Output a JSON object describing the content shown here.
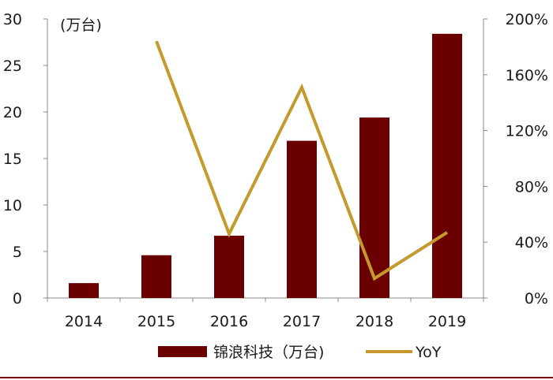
{
  "chart_data": {
    "type": "bar",
    "unit_label": "(万台)",
    "categories": [
      "2014",
      "2015",
      "2016",
      "2017",
      "2018",
      "2019"
    ],
    "y_left": {
      "ylim": [
        0,
        30
      ],
      "ticks": [
        "0",
        "5",
        "10",
        "15",
        "20",
        "25",
        "30"
      ]
    },
    "y_right": {
      "ylim": [
        0,
        200
      ],
      "ticks": [
        "0%",
        "40%",
        "80%",
        "120%",
        "160%",
        "200%"
      ]
    },
    "series": [
      {
        "name": "锦浪科技（万台)",
        "type": "bar",
        "axis": "left",
        "values": [
          1.6,
          4.6,
          6.7,
          16.9,
          19.4,
          28.4
        ],
        "color": "#6b0000"
      },
      {
        "name": "YoY",
        "type": "line",
        "axis": "right",
        "values": [
          null,
          184,
          46,
          151,
          14,
          47
        ],
        "unit": "%",
        "color": "#c5992b"
      }
    ],
    "legend_position": "bottom",
    "grid": false
  },
  "theme": {
    "rule_color": "#7a0000"
  }
}
